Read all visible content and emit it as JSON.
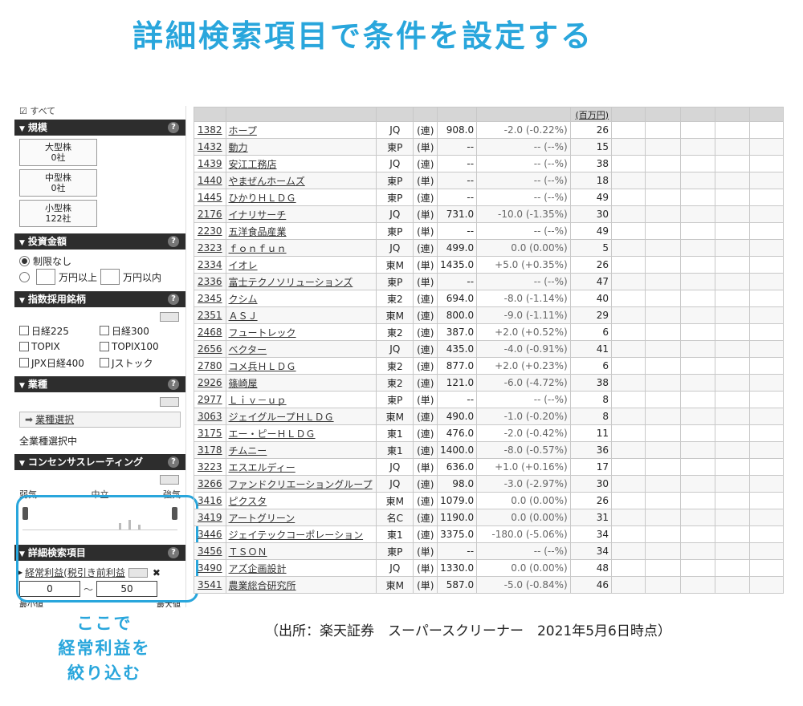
{
  "headline": "詳細検索項目で条件を設定する",
  "sidebar": {
    "top_label": "すべて",
    "scale": {
      "title": "規模",
      "buttons": [
        {
          "name": "大型株",
          "count": "0社"
        },
        {
          "name": "中型株",
          "count": "0社"
        },
        {
          "name": "小型株",
          "count": "122社"
        }
      ]
    },
    "investment": {
      "title": "投資金額",
      "unlimited": "制限なし",
      "from_unit": "万円以上",
      "to_unit": "万円以内"
    },
    "index": {
      "title": "指数採用銘柄",
      "items": [
        "日経225",
        "日経300",
        "TOPIX",
        "TOPIX100",
        "JPX日経400",
        "Jストック"
      ]
    },
    "industry": {
      "title": "業種",
      "select_label": "業種選択",
      "status": "全業種選択中"
    },
    "consensus": {
      "title": "コンセンサスレーティング",
      "labels": [
        "弱気",
        "中立",
        "強気"
      ]
    },
    "detail": {
      "title": "詳細検索項目",
      "item_label": "経常利益(税引き前利益",
      "min_value": "0",
      "max_value": "50",
      "min_label": "最小値",
      "max_label": "最大値"
    },
    "help": "?"
  },
  "callout": [
    "ここで",
    "経常利益を",
    "絞り込む"
  ],
  "table": {
    "unit_header": "(百万円)",
    "rows": [
      {
        "code": "1382",
        "name": "ホープ",
        "market": "JQ",
        "kind": "(連)",
        "price": "908.0",
        "change": "-2.0 (-0.22%)",
        "value": "26"
      },
      {
        "code": "1432",
        "name": "動力",
        "market": "東P",
        "kind": "(単)",
        "price": "--",
        "change": "-- (--%)",
        "value": "15"
      },
      {
        "code": "1439",
        "name": "安江工務店",
        "market": "JQ",
        "kind": "(連)",
        "price": "--",
        "change": "-- (--%)",
        "value": "38"
      },
      {
        "code": "1440",
        "name": "やまぜんホームズ",
        "market": "東P",
        "kind": "(単)",
        "price": "--",
        "change": "-- (--%)",
        "value": "18"
      },
      {
        "code": "1445",
        "name": "ひかりＨＬＤＧ",
        "market": "東P",
        "kind": "(連)",
        "price": "--",
        "change": "-- (--%)",
        "value": "49"
      },
      {
        "code": "2176",
        "name": "イナリサーチ",
        "market": "JQ",
        "kind": "(単)",
        "price": "731.0",
        "change": "-10.0 (-1.35%)",
        "value": "30"
      },
      {
        "code": "2230",
        "name": "五洋食品産業",
        "market": "東P",
        "kind": "(単)",
        "price": "--",
        "change": "-- (--%)",
        "value": "49"
      },
      {
        "code": "2323",
        "name": "ｆｏｎｆｕｎ",
        "market": "JQ",
        "kind": "(連)",
        "price": "499.0",
        "change": "0.0 (0.00%)",
        "value": "5"
      },
      {
        "code": "2334",
        "name": "イオレ",
        "market": "東M",
        "kind": "(単)",
        "price": "1435.0",
        "change": "+5.0 (+0.35%)",
        "value": "26"
      },
      {
        "code": "2336",
        "name": "富士テクノソリューションズ",
        "market": "東P",
        "kind": "(単)",
        "price": "--",
        "change": "-- (--%)",
        "value": "47"
      },
      {
        "code": "2345",
        "name": "クシム",
        "market": "東2",
        "kind": "(連)",
        "price": "694.0",
        "change": "-8.0 (-1.14%)",
        "value": "40"
      },
      {
        "code": "2351",
        "name": "ＡＳＪ",
        "market": "東M",
        "kind": "(連)",
        "price": "800.0",
        "change": "-9.0 (-1.11%)",
        "value": "29"
      },
      {
        "code": "2468",
        "name": "フュートレック",
        "market": "東2",
        "kind": "(連)",
        "price": "387.0",
        "change": "+2.0 (+0.52%)",
        "value": "6"
      },
      {
        "code": "2656",
        "name": "ベクター",
        "market": "JQ",
        "kind": "(連)",
        "price": "435.0",
        "change": "-4.0 (-0.91%)",
        "value": "41"
      },
      {
        "code": "2780",
        "name": "コメ兵ＨＬＤＧ",
        "market": "東2",
        "kind": "(連)",
        "price": "877.0",
        "change": "+2.0 (+0.23%)",
        "value": "6"
      },
      {
        "code": "2926",
        "name": "篠崎屋",
        "market": "東2",
        "kind": "(連)",
        "price": "121.0",
        "change": "-6.0 (-4.72%)",
        "value": "38"
      },
      {
        "code": "2977",
        "name": "Ｌｉｖ－ｕｐ",
        "market": "東P",
        "kind": "(単)",
        "price": "--",
        "change": "-- (--%)",
        "value": "8"
      },
      {
        "code": "3063",
        "name": "ジェイグループＨＬＤＧ",
        "market": "東M",
        "kind": "(連)",
        "price": "490.0",
        "change": "-1.0 (-0.20%)",
        "value": "8"
      },
      {
        "code": "3175",
        "name": "エー・ピーＨＬＤＧ",
        "market": "東1",
        "kind": "(連)",
        "price": "476.0",
        "change": "-2.0 (-0.42%)",
        "value": "11"
      },
      {
        "code": "3178",
        "name": "チムニー",
        "market": "東1",
        "kind": "(連)",
        "price": "1400.0",
        "change": "-8.0 (-0.57%)",
        "value": "36"
      },
      {
        "code": "3223",
        "name": "エスエルディー",
        "market": "JQ",
        "kind": "(単)",
        "price": "636.0",
        "change": "+1.0 (+0.16%)",
        "value": "17"
      },
      {
        "code": "3266",
        "name": "ファンドクリエーショングループ",
        "market": "JQ",
        "kind": "(連)",
        "price": "98.0",
        "change": "-3.0 (-2.97%)",
        "value": "30"
      },
      {
        "code": "3416",
        "name": "ピクスタ",
        "market": "東M",
        "kind": "(連)",
        "price": "1079.0",
        "change": "0.0 (0.00%)",
        "value": "26"
      },
      {
        "code": "3419",
        "name": "アートグリーン",
        "market": "名C",
        "kind": "(連)",
        "price": "1190.0",
        "change": "0.0 (0.00%)",
        "value": "31"
      },
      {
        "code": "3446",
        "name": "ジェイテックコーポレーション",
        "market": "東1",
        "kind": "(連)",
        "price": "3375.0",
        "change": "-180.0 (-5.06%)",
        "value": "34"
      },
      {
        "code": "3456",
        "name": "ＴＳＯＮ",
        "market": "東P",
        "kind": "(単)",
        "price": "--",
        "change": "-- (--%)",
        "value": "34"
      },
      {
        "code": "3490",
        "name": "アズ企画設計",
        "market": "JQ",
        "kind": "(単)",
        "price": "1330.0",
        "change": "0.0 (0.00%)",
        "value": "48"
      },
      {
        "code": "3541",
        "name": "農業総合研究所",
        "market": "東M",
        "kind": "(単)",
        "price": "587.0",
        "change": "-5.0 (-0.84%)",
        "value": "46"
      }
    ]
  },
  "source": "（出所：楽天証券　スーパースクリーナー　2021年5月6日時点）"
}
